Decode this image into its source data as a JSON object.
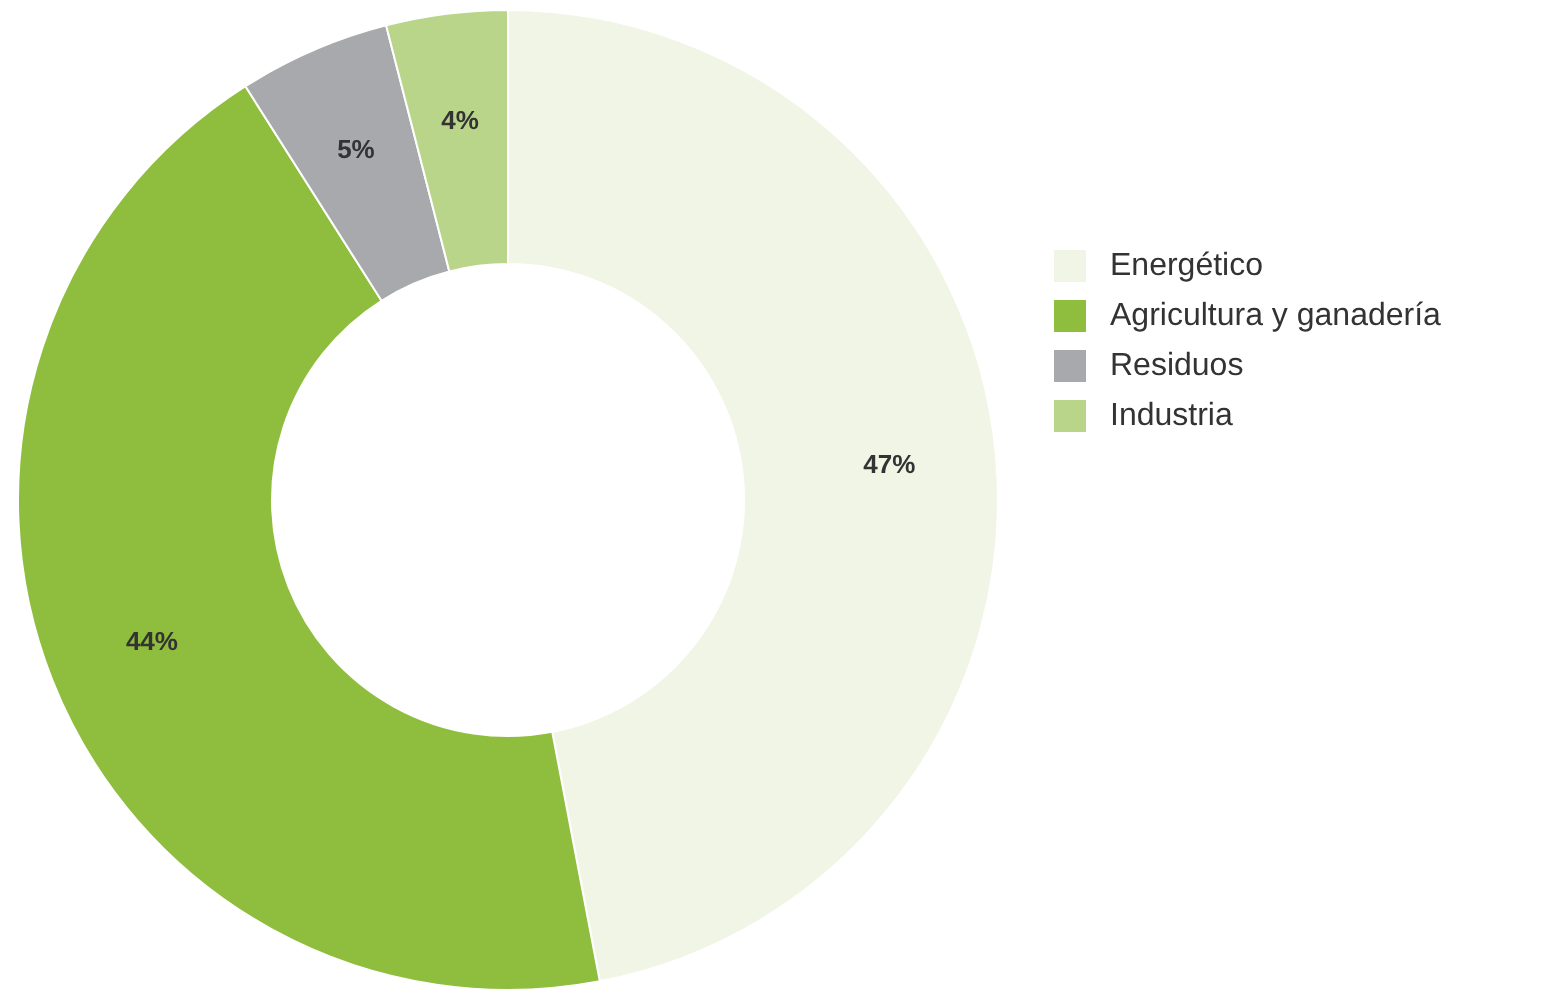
{
  "chart_data": {
    "type": "donut",
    "categories": [
      "Energético",
      "Agricultura y ganadería",
      "Residuos",
      "Industria"
    ],
    "values": [
      47,
      44,
      5,
      4
    ],
    "colors": [
      "#f1f5e6",
      "#8fbd3d",
      "#a7a9ac",
      "#b9d58a"
    ],
    "value_labels": [
      "47%",
      "44%",
      "5%",
      "4%"
    ],
    "legend": "right"
  }
}
